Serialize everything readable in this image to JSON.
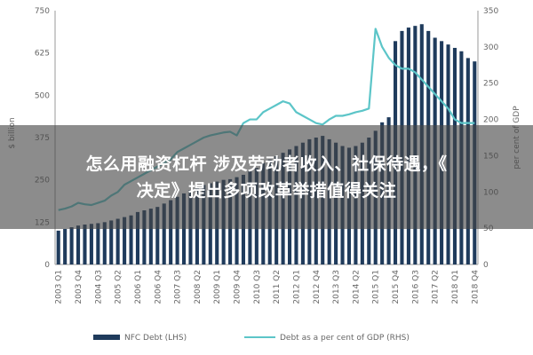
{
  "headline": {
    "line1": "怎么用融资杠杆 涉及劳动者收入、社保待遇，《",
    "line2": "决定》提出多项改革举措值得关注"
  },
  "colors": {
    "bar": "#1f3b5c",
    "line": "#5cc5c8",
    "text": "#666666"
  },
  "chart_data": {
    "type": "bar+line",
    "title": "",
    "y_left": {
      "label": "$ billion",
      "range": [
        0,
        750
      ],
      "ticks": [
        "0",
        "125",
        "250",
        "375",
        "500",
        "625",
        "750"
      ]
    },
    "y_right": {
      "label": "per cent of GDP",
      "range": [
        0,
        350
      ],
      "ticks": [
        "0",
        "50",
        "100",
        "150",
        "200",
        "250",
        "300",
        "350"
      ]
    },
    "x_tick_labels": [
      "2003 Q1",
      "2003 Q4",
      "2004 Q3",
      "2005 Q2",
      "2006 Q1",
      "2006 Q4",
      "2007 Q3",
      "2008 Q2",
      "2009 Q1",
      "2009 Q4",
      "2010 Q3",
      "2011 Q2",
      "2012 Q1",
      "2012 Q4",
      "2013 Q3",
      "2014 Q2",
      "2015 Q1",
      "2015 Q4",
      "2016 Q3",
      "2017 Q2",
      "2018 Q1",
      "2018 Q4"
    ],
    "categories": [
      "2003 Q1",
      "2003 Q2",
      "2003 Q3",
      "2003 Q4",
      "2004 Q1",
      "2004 Q2",
      "2004 Q3",
      "2004 Q4",
      "2005 Q1",
      "2005 Q2",
      "2005 Q3",
      "2005 Q4",
      "2006 Q1",
      "2006 Q2",
      "2006 Q3",
      "2006 Q4",
      "2007 Q1",
      "2007 Q2",
      "2007 Q3",
      "2007 Q4",
      "2008 Q1",
      "2008 Q2",
      "2008 Q3",
      "2008 Q4",
      "2009 Q1",
      "2009 Q2",
      "2009 Q3",
      "2009 Q4",
      "2010 Q1",
      "2010 Q2",
      "2010 Q3",
      "2010 Q4",
      "2011 Q1",
      "2011 Q2",
      "2011 Q3",
      "2011 Q4",
      "2012 Q1",
      "2012 Q2",
      "2012 Q3",
      "2012 Q4",
      "2013 Q1",
      "2013 Q2",
      "2013 Q3",
      "2013 Q4",
      "2014 Q1",
      "2014 Q2",
      "2014 Q3",
      "2014 Q4",
      "2015 Q1",
      "2015 Q2",
      "2015 Q3",
      "2015 Q4",
      "2016 Q1",
      "2016 Q2",
      "2016 Q3",
      "2016 Q4",
      "2017 Q1",
      "2017 Q2",
      "2017 Q3",
      "2017 Q4",
      "2018 Q1",
      "2018 Q2",
      "2018 Q3",
      "2018 Q4"
    ],
    "series": [
      {
        "name": "NFC Debt (LHS)",
        "type": "bar",
        "axis": "left",
        "values": [
          100,
          105,
          110,
          115,
          118,
          120,
          122,
          125,
          130,
          135,
          140,
          145,
          155,
          160,
          165,
          170,
          180,
          190,
          200,
          210,
          220,
          228,
          235,
          240,
          245,
          250,
          252,
          258,
          265,
          275,
          285,
          300,
          310,
          320,
          330,
          340,
          350,
          360,
          370,
          375,
          380,
          370,
          360,
          350,
          345,
          350,
          360,
          375,
          395,
          420,
          435,
          660,
          690,
          700,
          705,
          710,
          690,
          670,
          660,
          650,
          640,
          630,
          610,
          600
        ]
      },
      {
        "name": "Debt as a per cent of GDP (RHS)",
        "type": "line",
        "axis": "right",
        "values": [
          75,
          77,
          80,
          85,
          83,
          82,
          85,
          88,
          95,
          100,
          110,
          115,
          120,
          125,
          130,
          135,
          140,
          145,
          155,
          160,
          165,
          170,
          175,
          178,
          180,
          182,
          183,
          178,
          195,
          200,
          200,
          210,
          215,
          220,
          225,
          222,
          210,
          205,
          200,
          195,
          193,
          200,
          205,
          205,
          207,
          210,
          212,
          215,
          325,
          300,
          285,
          275,
          270,
          270,
          265,
          255,
          245,
          235,
          225,
          215,
          200,
          195,
          195,
          195
        ]
      }
    ],
    "legend": {
      "placement": "bottom",
      "entries": [
        "NFC Debt (LHS)",
        "Debt as a per cent of GDP (RHS)"
      ]
    },
    "grid": false
  }
}
